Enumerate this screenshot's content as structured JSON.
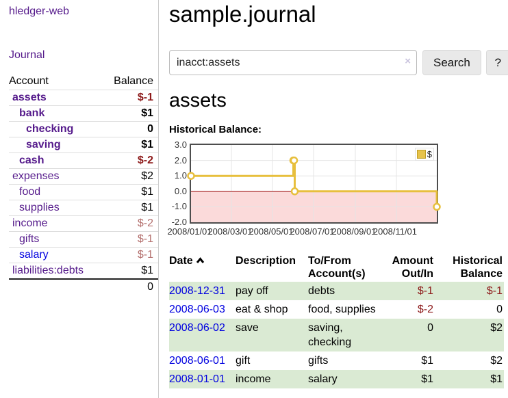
{
  "app": {
    "brand": "hledger-web"
  },
  "sidebar": {
    "journal_link": "Journal",
    "accounts": {
      "header_account": "Account",
      "header_balance": "Balance",
      "rows": [
        {
          "name": "assets",
          "balance": "$-1"
        },
        {
          "name": "bank",
          "balance": "$1"
        },
        {
          "name": "checking",
          "balance": "0"
        },
        {
          "name": "saving",
          "balance": "$1"
        },
        {
          "name": "cash",
          "balance": "$-2"
        },
        {
          "name": "expenses",
          "balance": "$2"
        },
        {
          "name": "food",
          "balance": "$1"
        },
        {
          "name": "supplies",
          "balance": "$1"
        },
        {
          "name": "income",
          "balance": "$-2"
        },
        {
          "name": "gifts",
          "balance": "$-1"
        },
        {
          "name": "salary",
          "balance": "$-1"
        },
        {
          "name": "liabilities:debts",
          "balance": "$1"
        }
      ],
      "total": "0"
    }
  },
  "main": {
    "title": "sample.journal",
    "search": {
      "value": "inacct:assets",
      "clear_icon": "×",
      "button_label": "Search",
      "help_label": "?"
    },
    "account_heading": "assets",
    "chart_label": "Historical Balance:",
    "register": {
      "headers": {
        "date": "Date",
        "description": "Description",
        "accounts": "To/From\nAccount(s)",
        "amount": "Amount\nOut/In",
        "balance": "Historical\nBalance"
      },
      "rows": [
        {
          "date": "2008-12-31",
          "description": "pay off",
          "accounts": "debts",
          "amount": "$-1",
          "balance": "$-1"
        },
        {
          "date": "2008-06-03",
          "description": "eat & shop",
          "accounts": "food, supplies",
          "amount": "$-2",
          "balance": "0"
        },
        {
          "date": "2008-06-02",
          "description": "save",
          "accounts": "saving, checking",
          "amount": "0",
          "balance": "$2"
        },
        {
          "date": "2008-06-01",
          "description": "gift",
          "accounts": "gifts",
          "amount": "$1",
          "balance": "$2"
        },
        {
          "date": "2008-01-01",
          "description": "income",
          "accounts": "salary",
          "amount": "$1",
          "balance": "$1"
        }
      ]
    }
  },
  "chart_data": {
    "type": "line",
    "step": true,
    "title": "Historical Balance",
    "series": [
      {
        "name": "$",
        "color": "#e7bf3d",
        "points": [
          [
            "2008/01/01",
            1
          ],
          [
            "2008/06/01",
            2
          ],
          [
            "2008/06/02",
            2
          ],
          [
            "2008/06/03",
            0
          ],
          [
            "2008/12/31",
            -1
          ]
        ]
      }
    ],
    "x_range": [
      "2008/01/01",
      "2008/12/31"
    ],
    "x_ticks": [
      "2008/01/01",
      "2008/03/01",
      "2008/05/01",
      "2008/07/01",
      "2008/09/01",
      "2008/11/01"
    ],
    "y_ticks": [
      3,
      2,
      1,
      0,
      -1,
      -2
    ],
    "ylim": [
      -2,
      3
    ],
    "grid": true,
    "legend_position": "top-right",
    "negative_region_color": "#fbdada",
    "zero_line_color": "#990000"
  },
  "colors": {
    "link_purple": "#551a8b",
    "link_blue": "#0000e0",
    "negative_strong": "#8d1a1a",
    "negative_soft": "#b4706e",
    "row_stripe_green": "#daead3",
    "series_yellow": "#e7bf3d"
  }
}
